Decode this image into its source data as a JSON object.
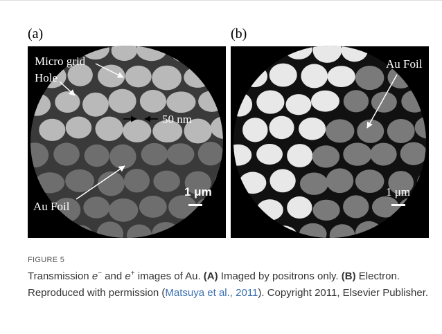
{
  "figure": {
    "panels": [
      {
        "label": "(a)",
        "annotations": [
          "Micro grid",
          "Hole",
          "50 nm",
          "Au Foil"
        ],
        "scale_bar": "1 μm"
      },
      {
        "label": "(b)",
        "annotations": [
          "Au Foil"
        ],
        "scale_bar": "1 μm"
      }
    ],
    "caption": {
      "label": "FIGURE 5",
      "parts": [
        "Transmission ",
        "e",
        "−",
        " and ",
        "e",
        "+",
        " images of Au. ",
        "(A)",
        " Imaged by positrons only. ",
        "(B)",
        " Electron. Reproduced with permission (",
        "Matsuya et al., 2011",
        "). Copyright 2011, Elsevier Publisher."
      ]
    }
  }
}
